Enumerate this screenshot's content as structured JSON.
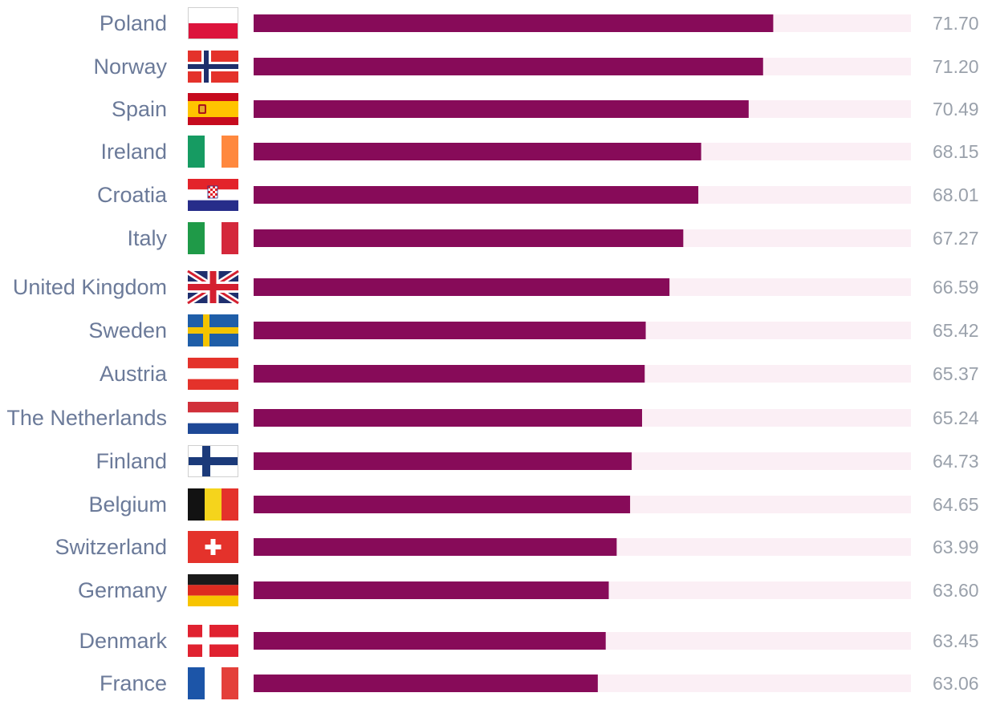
{
  "chart_data": {
    "type": "bar",
    "orientation": "horizontal",
    "grid": false,
    "categories": [
      "Poland",
      "Norway",
      "Spain",
      "Ireland",
      "Croatia",
      "Italy",
      "United Kingdom",
      "Sweden",
      "Austria",
      "The Netherlands",
      "Finland",
      "Belgium",
      "Switzerland",
      "Germany",
      "Denmark",
      "France"
    ],
    "values": [
      71.7,
      71.2,
      70.49,
      68.15,
      68.01,
      67.27,
      66.59,
      65.42,
      65.37,
      65.24,
      64.73,
      64.65,
      63.99,
      63.6,
      63.45,
      63.06
    ],
    "value_labels": [
      "71.70",
      "71.20",
      "70.49",
      "68.15",
      "68.01",
      "67.27",
      "66.59",
      "65.42",
      "65.37",
      "65.24",
      "64.73",
      "64.65",
      "63.99",
      "63.60",
      "63.45",
      "63.06"
    ],
    "flags": [
      "poland-flag-icon",
      "norway-flag-icon",
      "spain-flag-icon",
      "ireland-flag-icon",
      "croatia-flag-icon",
      "italy-flag-icon",
      "united-kingdom-flag-icon",
      "sweden-flag-icon",
      "austria-flag-icon",
      "netherlands-flag-icon",
      "finland-flag-icon",
      "belgium-flag-icon",
      "switzerland-flag-icon",
      "germany-flag-icon",
      "denmark-flag-icon",
      "france-flag-icon"
    ]
  },
  "colors": {
    "bar": "#870b59",
    "track": "#fbeff5",
    "label": "#6b7a99",
    "value": "#9aa1ab"
  }
}
